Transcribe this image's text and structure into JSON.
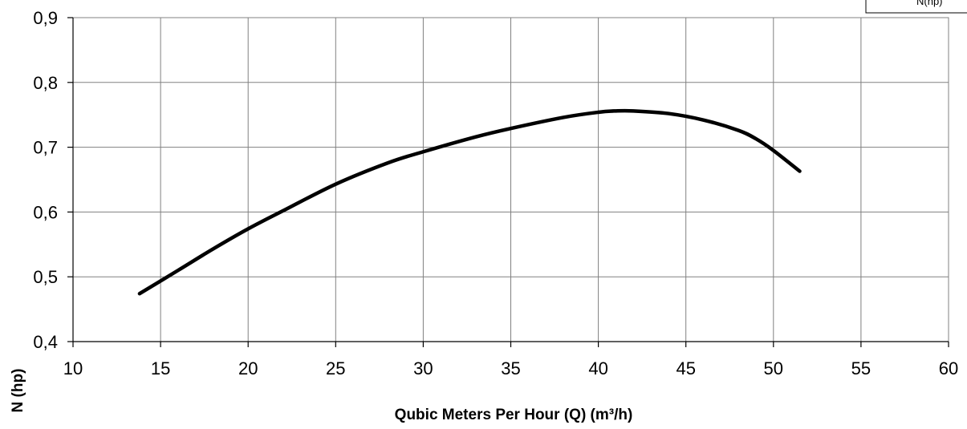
{
  "chart_data": {
    "type": "line",
    "xlabel": "Qubic Meters Per Hour (Q) (m³/h)",
    "ylabel": "N (hp)",
    "xlim": [
      10,
      60
    ],
    "ylim": [
      0.4,
      0.9
    ],
    "x_ticks": [
      "10",
      "15",
      "20",
      "25",
      "30",
      "35",
      "40",
      "45",
      "50",
      "55",
      "60"
    ],
    "y_ticks": [
      "0,4",
      "0,5",
      "0,6",
      "0,7",
      "0,8",
      "0,9"
    ],
    "grid": true,
    "legend": {
      "position": "top-right",
      "entries": [
        "N(hp)"
      ]
    },
    "series": [
      {
        "name": "N(hp)",
        "color": "#000000",
        "x": [
          13.8,
          16,
          18,
          20,
          22,
          25,
          28,
          30,
          33,
          35,
          38,
          40,
          41,
          42,
          44,
          46,
          48,
          49,
          50,
          51.5
        ],
        "y": [
          0.474,
          0.51,
          0.543,
          0.574,
          0.602,
          0.643,
          0.676,
          0.693,
          0.716,
          0.729,
          0.746,
          0.754,
          0.756,
          0.756,
          0.752,
          0.742,
          0.726,
          0.713,
          0.695,
          0.663
        ]
      }
    ]
  }
}
